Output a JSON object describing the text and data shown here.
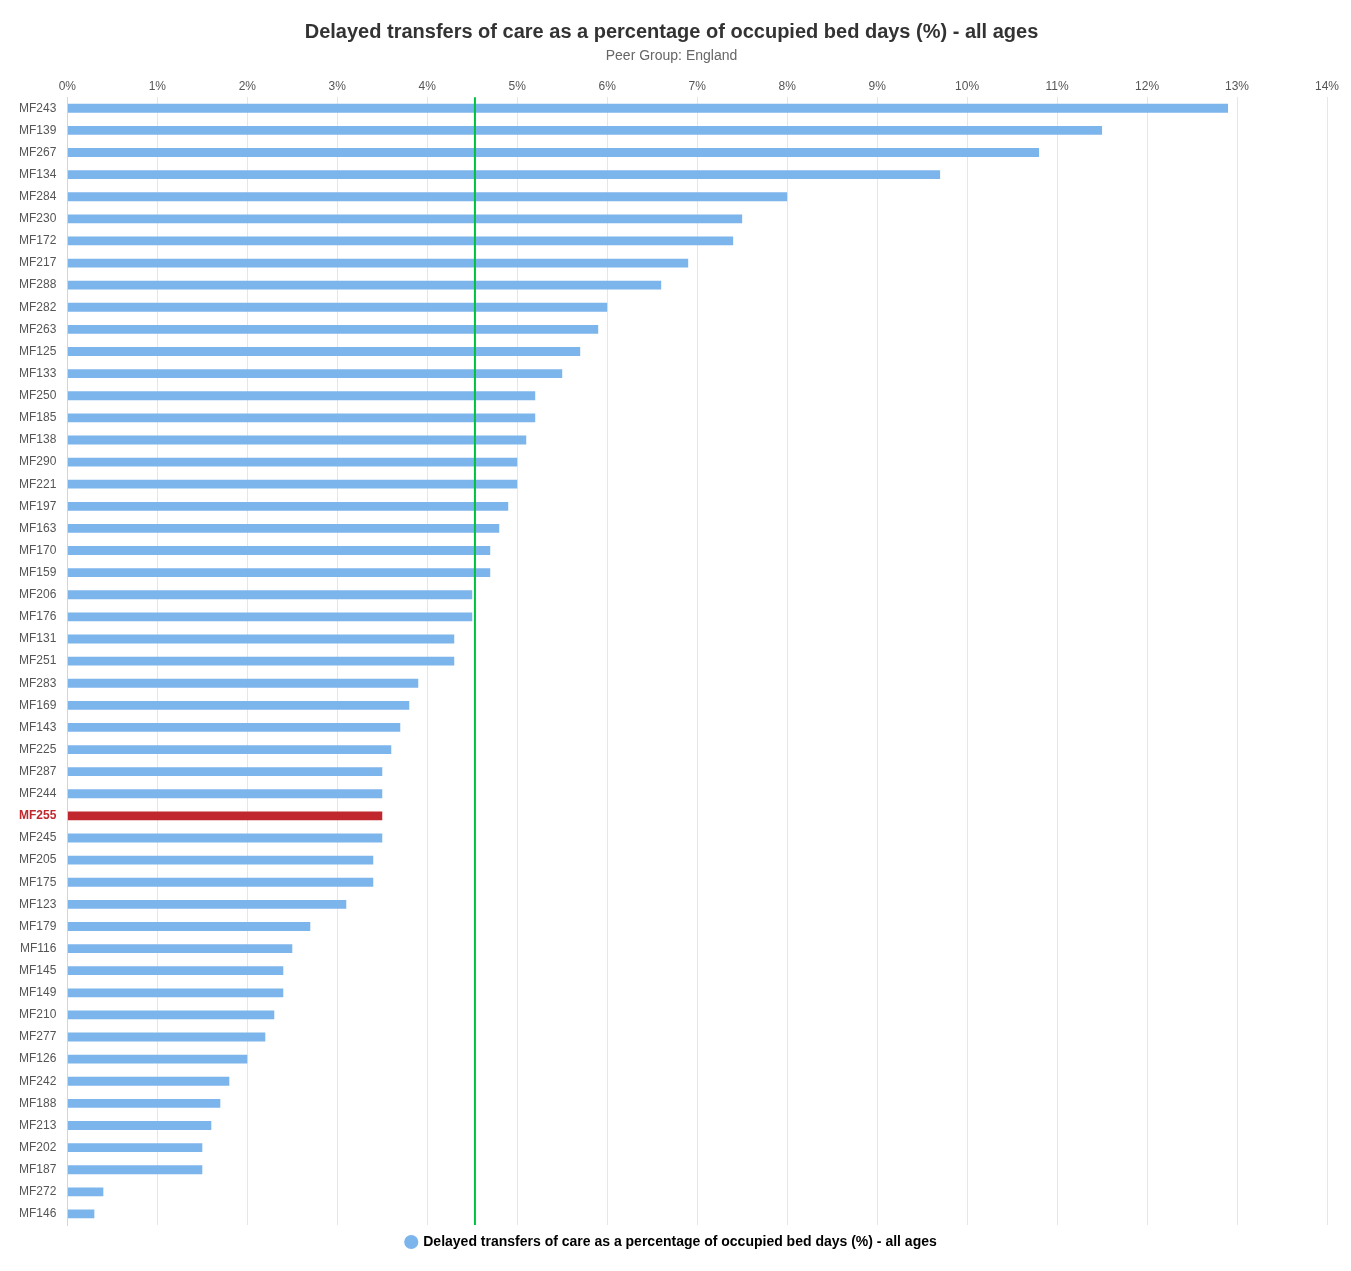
{
  "chart_data": {
    "type": "bar",
    "orientation": "horizontal",
    "title": "Delayed transfers of care as a percentage of occupied bed days (%) - all ages",
    "subtitle": "Peer Group: England",
    "categories": [
      "MF243",
      "MF139",
      "MF267",
      "MF134",
      "MF284",
      "MF230",
      "MF172",
      "MF217",
      "MF288",
      "MF282",
      "MF263",
      "MF125",
      "MF133",
      "MF250",
      "MF185",
      "MF138",
      "MF290",
      "MF221",
      "MF197",
      "MF163",
      "MF170",
      "MF159",
      "MF206",
      "MF176",
      "MF131",
      "MF251",
      "MF283",
      "MF169",
      "MF143",
      "MF225",
      "MF287",
      "MF244",
      "MF255",
      "MF245",
      "MF205",
      "MF175",
      "MF123",
      "MF179",
      "MF116",
      "MF145",
      "MF149",
      "MF210",
      "MF277",
      "MF126",
      "MF242",
      "MF188",
      "MF213",
      "MF202",
      "MF187",
      "MF272",
      "MF146"
    ],
    "series": [
      {
        "name": "Delayed transfers of care as a percentage of occupied bed days (%) - all ages",
        "color": "#7cb5ec",
        "values": [
          12.9,
          11.5,
          10.8,
          9.7,
          8.0,
          7.5,
          7.4,
          6.9,
          6.6,
          6.0,
          5.9,
          5.7,
          5.5,
          5.2,
          5.2,
          5.1,
          5.0,
          5.0,
          4.9,
          4.8,
          4.7,
          4.7,
          4.5,
          4.5,
          4.3,
          4.3,
          3.9,
          3.8,
          3.7,
          3.6,
          3.5,
          3.5,
          3.5,
          3.5,
          3.4,
          3.4,
          3.1,
          2.7,
          2.5,
          2.4,
          2.4,
          2.3,
          2.2,
          2.0,
          1.8,
          1.7,
          1.6,
          1.5,
          1.5,
          0.4,
          0.3
        ],
        "colors": [
          "#7cb5ec",
          "#7cb5ec",
          "#7cb5ec",
          "#7cb5ec",
          "#7cb5ec",
          "#7cb5ec",
          "#7cb5ec",
          "#7cb5ec",
          "#7cb5ec",
          "#7cb5ec",
          "#7cb5ec",
          "#7cb5ec",
          "#7cb5ec",
          "#7cb5ec",
          "#7cb5ec",
          "#7cb5ec",
          "#7cb5ec",
          "#7cb5ec",
          "#7cb5ec",
          "#7cb5ec",
          "#7cb5ec",
          "#7cb5ec",
          "#7cb5ec",
          "#7cb5ec",
          "#7cb5ec",
          "#7cb5ec",
          "#7cb5ec",
          "#7cb5ec",
          "#7cb5ec",
          "#7cb5ec",
          "#7cb5ec",
          "#7cb5ec",
          "#c0282d",
          "#7cb5ec",
          "#7cb5ec",
          "#7cb5ec",
          "#7cb5ec",
          "#7cb5ec",
          "#7cb5ec",
          "#7cb5ec",
          "#7cb5ec",
          "#7cb5ec",
          "#7cb5ec",
          "#7cb5ec",
          "#7cb5ec",
          "#7cb5ec",
          "#7cb5ec",
          "#7cb5ec",
          "#7cb5ec",
          "#7cb5ec",
          "#7cb5ec"
        ]
      }
    ],
    "xlim": [
      0,
      14
    ],
    "xticks": [
      {
        "value": 0,
        "label": "0%"
      },
      {
        "value": 1,
        "label": "1%"
      },
      {
        "value": 2,
        "label": "2%"
      },
      {
        "value": 3,
        "label": "3%"
      },
      {
        "value": 4,
        "label": "4%"
      },
      {
        "value": 5,
        "label": "5%"
      },
      {
        "value": 6,
        "label": "6%"
      },
      {
        "value": 7,
        "label": "7%"
      },
      {
        "value": 8,
        "label": "8%"
      },
      {
        "value": 9,
        "label": "9%"
      },
      {
        "value": 10,
        "label": "10%"
      },
      {
        "value": 11,
        "label": "11%"
      },
      {
        "value": 12,
        "label": "12%"
      },
      {
        "value": 13,
        "label": "13%"
      },
      {
        "value": 14,
        "label": "14%"
      }
    ],
    "ref_lines": [
      {
        "axis": "x",
        "value": 4.53,
        "color": "#00c040"
      }
    ],
    "grid": "x",
    "legend": "bottom",
    "marker": "circle"
  }
}
